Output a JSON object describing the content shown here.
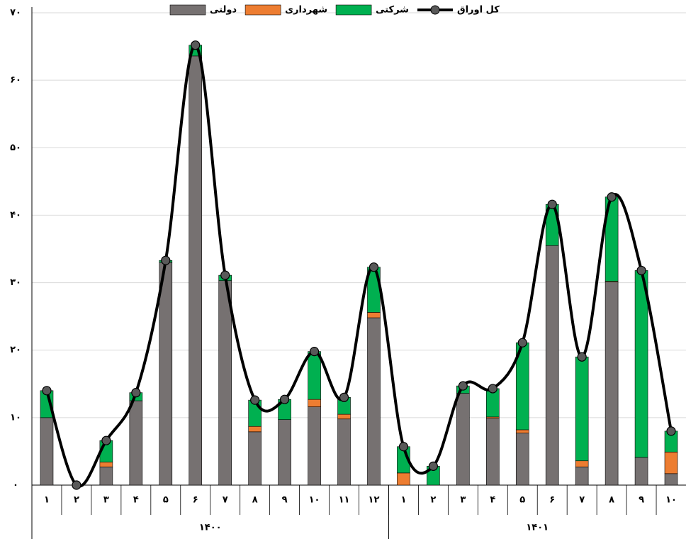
{
  "chart_data": {
    "type": "bar",
    "stacked": true,
    "category_groups": [
      {
        "label": "۱۴۰۰",
        "categories": [
          "۱",
          "۲",
          "۳",
          "۴",
          "۵",
          "۶",
          "۷",
          "۸",
          "۹",
          "۱۰",
          "۱۱",
          "۱۲"
        ]
      },
      {
        "label": "۱۴۰۱",
        "categories": [
          "۱",
          "۲",
          "۳",
          "۴",
          "۵",
          "۶",
          "۷",
          "۸",
          "۹",
          "۱۰"
        ]
      }
    ],
    "series": [
      {
        "name": "دولتی",
        "color": "#767171",
        "type": "bar",
        "values": [
          10.0,
          0,
          2.7,
          12.5,
          33.0,
          63.6,
          30.3,
          7.9,
          9.7,
          11.6,
          9.8,
          24.8,
          0,
          0,
          13.6,
          9.9,
          7.7,
          35.5,
          2.7,
          30.1,
          4.1,
          1.7
        ]
      },
      {
        "name": "شهرداری",
        "color": "#ed7d31",
        "type": "bar",
        "values": [
          0,
          0,
          0.7,
          0,
          0,
          0,
          0,
          0.8,
          0,
          1.1,
          0.7,
          0.8,
          1.8,
          0,
          0,
          0.2,
          0.5,
          0,
          0.9,
          0.1,
          0,
          3.2
        ]
      },
      {
        "name": "شرکتی",
        "color": "#00b050",
        "type": "bar",
        "values": [
          4.0,
          0,
          3.2,
          1.2,
          0.3,
          1.6,
          0.8,
          3.9,
          3.0,
          7.1,
          2.5,
          6.7,
          3.9,
          2.8,
          1.1,
          4.2,
          12.9,
          6.1,
          15.4,
          12.5,
          27.7,
          3.1
        ]
      },
      {
        "name": "کل اوراق",
        "color": "#000000",
        "marker_color": "#595959",
        "type": "line",
        "smooth": true,
        "values": [
          14.0,
          0,
          6.6,
          13.7,
          33.3,
          65.2,
          31.1,
          12.6,
          12.7,
          19.8,
          13.0,
          32.3,
          5.7,
          2.8,
          14.7,
          14.3,
          21.1,
          41.6,
          19.0,
          42.7,
          31.8,
          8.0
        ]
      }
    ],
    "ylim": [
      0,
      70
    ],
    "yticks": [
      {
        "value": 0,
        "label": "۰"
      },
      {
        "value": 10,
        "label": "۱۰"
      },
      {
        "value": 20,
        "label": "۲۰"
      },
      {
        "value": 30,
        "label": "۳۰"
      },
      {
        "value": 40,
        "label": "۴۰"
      },
      {
        "value": 50,
        "label": "۵۰"
      },
      {
        "value": 60,
        "label": "۶۰"
      },
      {
        "value": 70,
        "label": "۷۰"
      }
    ],
    "grid": true,
    "legend": "top"
  }
}
